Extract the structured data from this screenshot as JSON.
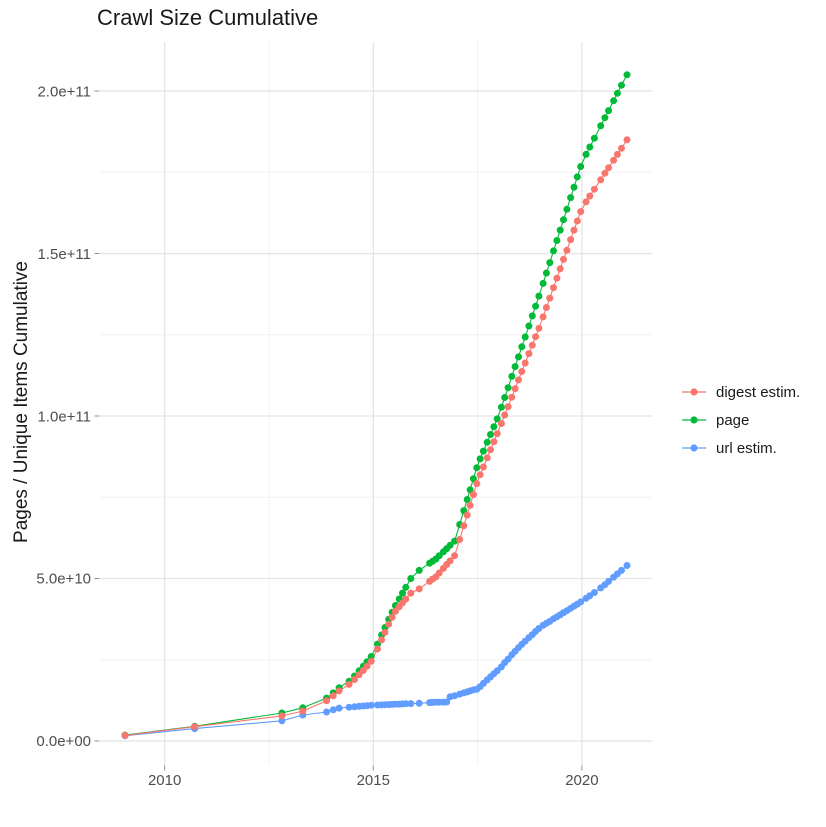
{
  "chart_data": {
    "type": "scatter",
    "title": "Crawl Size Cumulative",
    "xlabel": "",
    "ylabel": "Pages / Unique Items Cumulative",
    "y_unit": "values in billions (1e9) of pages / unique items",
    "xlim": [
      2008.45,
      2021.68
    ],
    "ylim": [
      -7.4,
      215.1
    ],
    "grid": true,
    "legend_position": "right",
    "x_ticks": [
      {
        "value": 2010,
        "label": "2010"
      },
      {
        "value": 2015,
        "label": "2015"
      },
      {
        "value": 2020,
        "label": "2020"
      }
    ],
    "x_minor_ticks": [
      2012.5,
      2017.5
    ],
    "y_ticks": [
      {
        "value": 0,
        "label": "0.0e+00"
      },
      {
        "value": 50,
        "label": "5.0e+10"
      },
      {
        "value": 100,
        "label": "1.0e+11"
      },
      {
        "value": 150,
        "label": "1.5e+11"
      },
      {
        "value": 200,
        "label": "2.0e+11"
      }
    ],
    "y_minor_ticks": [
      25,
      75,
      125,
      175
    ],
    "legend": [
      {
        "label": "digest estim.",
        "color": "#F8766D"
      },
      {
        "label": "page",
        "color": "#00BA38"
      },
      {
        "label": "url estim.",
        "color": "#619CFF"
      }
    ],
    "series": [
      {
        "name": "digest estim.",
        "color": "#F8766D",
        "x": [
          2009.05,
          2010.72,
          2012.81,
          2013.31,
          2013.88,
          2014.04,
          2014.18,
          2014.42,
          2014.55,
          2014.66,
          2014.76,
          2014.85,
          2014.95,
          2015.1,
          2015.2,
          2015.28,
          2015.37,
          2015.45,
          2015.53,
          2015.62,
          2015.7,
          2015.78,
          2015.9,
          2016.1,
          2016.35,
          2016.42,
          2016.5,
          2016.58,
          2016.68,
          2016.76,
          2016.84,
          2016.95,
          2017.07,
          2017.17,
          2017.25,
          2017.32,
          2017.4,
          2017.48,
          2017.56,
          2017.64,
          2017.73,
          2017.81,
          2017.89,
          2017.97,
          2018.07,
          2018.15,
          2018.23,
          2018.32,
          2018.4,
          2018.48,
          2018.56,
          2018.64,
          2018.73,
          2018.81,
          2018.89,
          2018.97,
          2019.07,
          2019.15,
          2019.23,
          2019.32,
          2019.4,
          2019.48,
          2019.56,
          2019.64,
          2019.73,
          2019.81,
          2019.89,
          2019.97,
          2020.1,
          2020.19,
          2020.3,
          2020.45,
          2020.55,
          2020.64,
          2020.76,
          2020.85,
          2020.95,
          2021.08
        ],
        "y": [
          1.7,
          4.4,
          7.7,
          9.2,
          12.4,
          13.9,
          15.4,
          17.4,
          18.9,
          20.4,
          21.7,
          23,
          24.5,
          28.3,
          31.1,
          33.4,
          35.9,
          38.1,
          39.9,
          41.3,
          42.5,
          43.7,
          45.5,
          46.8,
          49.1,
          49.8,
          50.5,
          51.7,
          53.1,
          54.3,
          55.4,
          57,
          62,
          66.2,
          69.5,
          72.5,
          75.8,
          79.2,
          81.9,
          84.3,
          87.1,
          89.6,
          92.1,
          94.6,
          97.7,
          100.3,
          102.9,
          105.8,
          108.4,
          111.1,
          113.7,
          116.3,
          119.2,
          121.8,
          124.4,
          127,
          130.5,
          133.4,
          136.3,
          139.5,
          142.4,
          145.3,
          148.2,
          151,
          154.3,
          157.2,
          160,
          162.9,
          165.9,
          167.7,
          169.8,
          172.7,
          174.7,
          176.4,
          178.7,
          180.5,
          182.4,
          185
        ]
      },
      {
        "name": "page",
        "color": "#00BA38",
        "x": [
          2009.05,
          2010.72,
          2012.81,
          2013.31,
          2013.88,
          2014.04,
          2014.18,
          2014.42,
          2014.55,
          2014.66,
          2014.76,
          2014.85,
          2014.95,
          2015.1,
          2015.2,
          2015.28,
          2015.37,
          2015.45,
          2015.53,
          2015.62,
          2015.7,
          2015.78,
          2015.9,
          2016.1,
          2016.35,
          2016.42,
          2016.5,
          2016.58,
          2016.68,
          2016.76,
          2016.84,
          2016.95,
          2017.07,
          2017.17,
          2017.25,
          2017.32,
          2017.4,
          2017.48,
          2017.56,
          2017.64,
          2017.73,
          2017.81,
          2017.89,
          2017.97,
          2018.07,
          2018.15,
          2018.23,
          2018.32,
          2018.4,
          2018.48,
          2018.56,
          2018.64,
          2018.73,
          2018.81,
          2018.89,
          2018.97,
          2019.07,
          2019.15,
          2019.23,
          2019.32,
          2019.4,
          2019.48,
          2019.56,
          2019.64,
          2019.73,
          2019.81,
          2019.89,
          2019.97,
          2020.1,
          2020.19,
          2020.3,
          2020.45,
          2020.55,
          2020.64,
          2020.76,
          2020.85,
          2020.95,
          2021.08
        ],
        "y": [
          1.8,
          4.5,
          8.6,
          10.2,
          13.2,
          14.8,
          16.4,
          18.4,
          20,
          21.6,
          23,
          24.4,
          26,
          29.8,
          32.6,
          34.9,
          37.4,
          39.6,
          41.7,
          43.7,
          45.5,
          47.3,
          50,
          52.5,
          54.7,
          55.3,
          56,
          57,
          58.2,
          59.2,
          60.2,
          61.5,
          66.6,
          70.9,
          74.3,
          77.3,
          80.7,
          84.1,
          86.8,
          89.2,
          91.9,
          94.3,
          96.7,
          99.1,
          102.7,
          105.7,
          108.7,
          112.2,
          115.2,
          118.2,
          121.3,
          124.3,
          127.7,
          130.8,
          133.8,
          136.9,
          140.8,
          144,
          147.2,
          150.8,
          154,
          157.2,
          160.4,
          163.6,
          167.2,
          170.4,
          173.6,
          176.8,
          180.5,
          182.8,
          185.5,
          189.3,
          191.8,
          194,
          197,
          199.3,
          201.8,
          205
        ]
      },
      {
        "name": "url estim.",
        "color": "#619CFF",
        "x": [
          2009.05,
          2010.72,
          2012.81,
          2013.31,
          2013.88,
          2014.04,
          2014.18,
          2014.42,
          2014.55,
          2014.66,
          2014.76,
          2014.85,
          2014.95,
          2015.1,
          2015.2,
          2015.28,
          2015.37,
          2015.45,
          2015.53,
          2015.62,
          2015.7,
          2015.78,
          2015.9,
          2016.1,
          2016.35,
          2016.42,
          2016.5,
          2016.58,
          2016.68,
          2016.76,
          2016.84,
          2016.95,
          2017.07,
          2017.17,
          2017.25,
          2017.32,
          2017.4,
          2017.48,
          2017.56,
          2017.64,
          2017.73,
          2017.81,
          2017.89,
          2017.97,
          2018.07,
          2018.15,
          2018.23,
          2018.32,
          2018.4,
          2018.48,
          2018.56,
          2018.64,
          2018.73,
          2018.81,
          2018.89,
          2018.97,
          2019.07,
          2019.15,
          2019.23,
          2019.32,
          2019.4,
          2019.48,
          2019.56,
          2019.64,
          2019.73,
          2019.81,
          2019.89,
          2019.97,
          2020.1,
          2020.19,
          2020.3,
          2020.45,
          2020.55,
          2020.64,
          2020.76,
          2020.85,
          2020.95,
          2021.08
        ],
        "y": [
          1.6,
          3.8,
          6.2,
          8,
          8.9,
          9.6,
          10.1,
          10.4,
          10.5,
          10.65,
          10.75,
          10.85,
          11,
          11.05,
          11.1,
          11.15,
          11.2,
          11.25,
          11.3,
          11.35,
          11.4,
          11.45,
          11.5,
          11.6,
          11.8,
          11.85,
          11.9,
          11.93,
          11.97,
          12,
          13.6,
          13.9,
          14.4,
          14.8,
          15.1,
          15.4,
          15.7,
          15.9,
          16.7,
          17.7,
          18.8,
          19.7,
          20.7,
          21.6,
          22.8,
          24.1,
          25.2,
          26.5,
          27.6,
          28.7,
          29.7,
          30.7,
          31.8,
          32.7,
          33.7,
          34.6,
          35.6,
          36.2,
          36.8,
          37.6,
          38.2,
          38.8,
          39.5,
          40.1,
          40.8,
          41.5,
          42.1,
          42.8,
          43.9,
          44.7,
          45.7,
          47.1,
          48.1,
          49.1,
          50.4,
          51.4,
          52.5,
          54
        ]
      }
    ]
  }
}
